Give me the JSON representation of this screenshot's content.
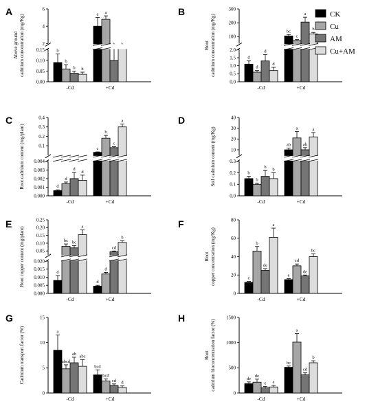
{
  "legend": [
    {
      "label": "CK",
      "color": "#000000"
    },
    {
      "label": "Cu",
      "color": "#a6a6a6"
    },
    {
      "label": "AM",
      "color": "#757575"
    },
    {
      "label": "Cu+AM",
      "color": "#dcdcdc"
    }
  ],
  "colors": [
    "#000000",
    "#a6a6a6",
    "#757575",
    "#dcdcdc"
  ],
  "chart_data": [
    {
      "panel": "A",
      "type": "bar",
      "broken_axis": true,
      "ylabel": [
        "Above ground",
        "cadmium concentration (mg/Kg)"
      ],
      "categories": [
        "-Cd",
        "+Cd"
      ],
      "lower": {
        "range": [
          0,
          0.15
        ],
        "ticks": [
          0,
          0.05,
          0.1,
          0.15
        ],
        "tick_labels": [
          "0.00",
          "0.05",
          "0.10",
          "0.15"
        ]
      },
      "upper": {
        "range": [
          2,
          6
        ],
        "ticks": [
          2,
          4,
          6
        ],
        "tick_labels": [
          "2",
          "4",
          "6"
        ]
      },
      "series": [
        {
          "name": "CK",
          "values": [
            0.09,
            4.0
          ],
          "errors": [
            0.04,
            1.0
          ],
          "letters": [
            "b",
            "a"
          ]
        },
        {
          "name": "Cu",
          "values": [
            0.06,
            4.8
          ],
          "errors": [
            0.02,
            0.4
          ],
          "letters": [
            "b",
            "a"
          ]
        },
        {
          "name": "AM",
          "values": [
            0.04,
            0.1
          ],
          "errors": [
            0.01,
            0.1
          ],
          "letters": [
            "b",
            "b"
          ]
        },
        {
          "name": "Cu+AM",
          "values": [
            0.035,
            0.35
          ],
          "errors": [
            0.01,
            0.25
          ],
          "letters": [
            "b",
            "b"
          ]
        }
      ]
    },
    {
      "panel": "B",
      "type": "bar",
      "broken_axis": true,
      "ylabel": [
        "Root",
        "cadmium concentration (mg/Kg)"
      ],
      "categories": [
        "-Cd",
        "+Cd"
      ],
      "lower": {
        "range": [
          0,
          2.0
        ],
        "ticks": [
          0,
          0.5,
          1.0,
          1.5,
          2.0
        ],
        "tick_labels": [
          "0.0",
          "0.5",
          "1.0",
          "1.5",
          "2.0"
        ]
      },
      "upper": {
        "range": [
          50,
          300
        ],
        "ticks": [
          100,
          200,
          300
        ],
        "tick_labels": [
          "100",
          "200",
          "300"
        ]
      },
      "series": [
        {
          "name": "CK",
          "values": [
            1.1,
            105
          ],
          "errors": [
            0.2,
            10
          ],
          "letters": [
            "d",
            "bc"
          ]
        },
        {
          "name": "Cu",
          "values": [
            0.6,
            72
          ],
          "errors": [
            0.1,
            8
          ],
          "letters": [
            "d",
            "c"
          ]
        },
        {
          "name": "AM",
          "values": [
            1.3,
            205
          ],
          "errors": [
            0.4,
            35
          ],
          "letters": [
            "d",
            "a"
          ]
        },
        {
          "name": "Cu+AM",
          "values": [
            0.7,
            120
          ],
          "errors": [
            0.2,
            10
          ],
          "letters": [
            "d",
            "b"
          ]
        }
      ]
    },
    {
      "panel": "C",
      "type": "bar",
      "broken_axis": true,
      "ylabel": [
        "Root cadmium content (mg/plant)"
      ],
      "categories": [
        "-Cd",
        "+Cd"
      ],
      "lower": {
        "range": [
          0,
          0.004
        ],
        "ticks": [
          0,
          0.001,
          0.002,
          0.003,
          0.004
        ],
        "tick_labels": [
          "0.000",
          "0.001",
          "0.002",
          "0.003",
          "0.004"
        ]
      },
      "upper": {
        "range": [
          0,
          0.4
        ],
        "ticks": [
          0.1,
          0.2,
          0.3,
          0.4
        ],
        "tick_labels": [
          "0.1",
          "0.2",
          "0.3",
          "0.4"
        ]
      },
      "series": [
        {
          "name": "CK",
          "values": [
            0.0006,
            0.03
          ],
          "errors": [
            0.0001,
            0.005
          ],
          "letters": [
            "d",
            "c"
          ]
        },
        {
          "name": "Cu",
          "values": [
            0.0014,
            0.18
          ],
          "errors": [
            0.0002,
            0.03
          ],
          "letters": [
            "d",
            "b"
          ]
        },
        {
          "name": "AM",
          "values": [
            0.002,
            0.08
          ],
          "errors": [
            0.0007,
            0.01
          ],
          "letters": [
            "d",
            "c"
          ]
        },
        {
          "name": "Cu+AM",
          "values": [
            0.0018,
            0.3
          ],
          "errors": [
            0.0006,
            0.03
          ],
          "letters": [
            "d",
            "a"
          ]
        }
      ]
    },
    {
      "panel": "D",
      "type": "bar",
      "broken_axis": true,
      "ylabel": [
        "Soil cadmium content (mg/Kg)"
      ],
      "categories": [
        "-Cd",
        "+Cd"
      ],
      "lower": {
        "range": [
          0,
          0.3
        ],
        "ticks": [
          0,
          0.1,
          0.2,
          0.3
        ],
        "tick_labels": [
          "0.0",
          "0.1",
          "0.2",
          "0.3"
        ]
      },
      "upper": {
        "range": [
          5,
          40
        ],
        "ticks": [
          10,
          20,
          30,
          40
        ],
        "tick_labels": [
          "10",
          "20",
          "30",
          "40"
        ]
      },
      "series": [
        {
          "name": "CK",
          "values": [
            0.15,
            10
          ],
          "errors": [
            0.02,
            1.5
          ],
          "letters": [
            "b",
            "ab"
          ]
        },
        {
          "name": "Cu",
          "values": [
            0.1,
            21
          ],
          "errors": [
            0.01,
            6
          ],
          "letters": [
            "b",
            "a"
          ]
        },
        {
          "name": "AM",
          "values": [
            0.17,
            10
          ],
          "errors": [
            0.05,
            2
          ],
          "letters": [
            "b",
            "ab"
          ]
        },
        {
          "name": "Cu+AM",
          "values": [
            0.15,
            22
          ],
          "errors": [
            0.05,
            4
          ],
          "letters": [
            "b",
            "a"
          ]
        }
      ]
    },
    {
      "panel": "E",
      "type": "bar",
      "broken_axis": true,
      "ylabel": [
        "Root copper content (mg/plant)"
      ],
      "categories": [
        "-Cd",
        "+Cd"
      ],
      "lower": {
        "range": [
          0,
          0.02
        ],
        "ticks": [
          0,
          0.005,
          0.01,
          0.015,
          0.02
        ],
        "tick_labels": [
          "0.000",
          "0.005",
          "0.010",
          "0.015",
          "0.020"
        ]
      },
      "upper": {
        "range": [
          0.025,
          0.25
        ],
        "ticks": [
          0.05,
          0.1,
          0.15,
          0.2,
          0.25
        ],
        "tick_labels": [
          "0.05",
          "0.10",
          "0.15",
          "0.20",
          "0.25"
        ]
      },
      "series": [
        {
          "name": "CK",
          "values": [
            0.008,
            0.0045
          ],
          "errors": [
            0.003,
            0.0005
          ],
          "letters": [
            "d",
            "d"
          ]
        },
        {
          "name": "Cu",
          "values": [
            0.08,
            0.012
          ],
          "errors": [
            0.015,
            0.001
          ],
          "letters": [
            "bc",
            "d"
          ]
        },
        {
          "name": "AM",
          "values": [
            0.07,
            0.045
          ],
          "errors": [
            0.015,
            0.005
          ],
          "letters": [
            "bc",
            "cd"
          ]
        },
        {
          "name": "Cu+AM",
          "values": [
            0.155,
            0.105
          ],
          "errors": [
            0.03,
            0.01
          ],
          "letters": [
            "a",
            "b"
          ]
        }
      ]
    },
    {
      "panel": "F",
      "type": "bar",
      "broken_axis": false,
      "ylabel": [
        "Root",
        "copper concentration (mg/Kg)"
      ],
      "categories": [
        "-Cd",
        "+Cd"
      ],
      "axis": {
        "range": [
          0,
          80
        ],
        "ticks": [
          0,
          20,
          40,
          60,
          80
        ],
        "tick_labels": [
          "0",
          "20",
          "40",
          "60",
          "80"
        ]
      },
      "series": [
        {
          "name": "CK",
          "values": [
            12,
            15
          ],
          "errors": [
            1,
            1
          ],
          "letters": [
            "e",
            "e"
          ]
        },
        {
          "name": "Cu",
          "values": [
            46,
            30
          ],
          "errors": [
            5,
            2
          ],
          "letters": [
            "b",
            "cd"
          ]
        },
        {
          "name": "AM",
          "values": [
            25,
            19
          ],
          "errors": [
            2,
            1
          ],
          "letters": [
            "de",
            "de"
          ]
        },
        {
          "name": "Cu+AM",
          "values": [
            61,
            40
          ],
          "errors": [
            10,
            3
          ],
          "letters": [
            "a",
            "bc"
          ]
        }
      ]
    },
    {
      "panel": "G",
      "type": "bar",
      "broken_axis": false,
      "ylabel": [
        "Cadmium transport factor (%)"
      ],
      "categories": [
        "-Cd",
        "+Cd"
      ],
      "axis": {
        "range": [
          0,
          15
        ],
        "ticks": [
          0,
          5,
          10,
          15
        ],
        "tick_labels": [
          "0",
          "5",
          "10",
          "15"
        ]
      },
      "series": [
        {
          "name": "CK",
          "values": [
            8.5,
            3.6
          ],
          "errors": [
            3.0,
            1.0
          ],
          "letters": [
            "a",
            "bcd"
          ]
        },
        {
          "name": "Cu",
          "values": [
            4.8,
            2.4
          ],
          "errors": [
            0.8,
            0.4
          ],
          "letters": [
            "abcd",
            "bcd"
          ]
        },
        {
          "name": "AM",
          "values": [
            6.0,
            1.5
          ],
          "errors": [
            1.1,
            0.3
          ],
          "letters": [
            "ab",
            "cd"
          ]
        },
        {
          "name": "Cu+AM",
          "values": [
            5.3,
            1.1
          ],
          "errors": [
            1.3,
            0.3
          ],
          "letters": [
            "abc",
            "d"
          ]
        }
      ]
    },
    {
      "panel": "H",
      "type": "bar",
      "broken_axis": false,
      "ylabel": [
        "Root",
        "cadmium bioconcentration factor (%)"
      ],
      "categories": [
        "-Cd",
        "+Cd"
      ],
      "axis": {
        "range": [
          0,
          1500
        ],
        "ticks": [
          0,
          500,
          1000,
          1500
        ],
        "tick_labels": [
          "0",
          "500",
          "1000",
          "1500"
        ]
      },
      "series": [
        {
          "name": "CK",
          "values": [
            185,
            510
          ],
          "errors": [
            35,
            25
          ],
          "letters": [
            "de",
            "bc"
          ]
        },
        {
          "name": "Cu",
          "values": [
            215,
            1010
          ],
          "errors": [
            60,
            170
          ],
          "letters": [
            "de",
            "a"
          ]
        },
        {
          "name": "AM",
          "values": [
            105,
            360
          ],
          "errors": [
            25,
            40
          ],
          "letters": [
            "e",
            "cd"
          ]
        },
        {
          "name": "Cu+AM",
          "values": [
            120,
            600
          ],
          "errors": [
            30,
            40
          ],
          "letters": [
            "e",
            "b"
          ]
        }
      ]
    }
  ]
}
